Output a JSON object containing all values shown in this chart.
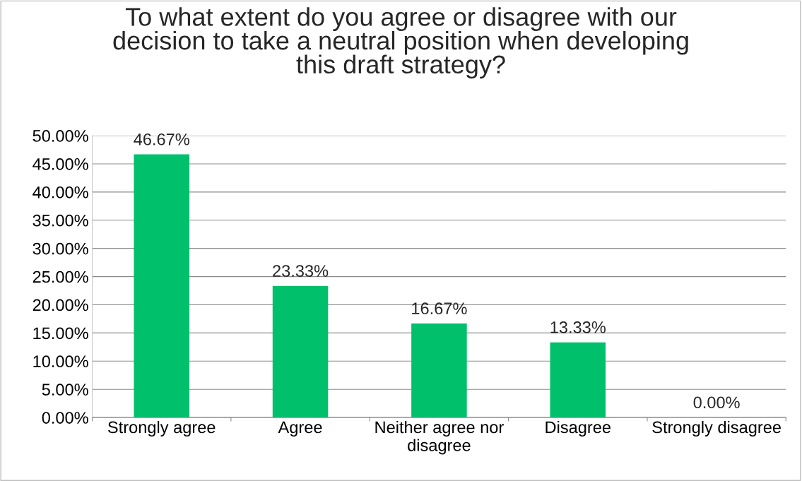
{
  "chart_data": {
    "type": "bar",
    "title": "To what extent do you agree or disagree with our\ndecision to take a neutral position when developing\nthis draft strategy?",
    "categories": [
      "Strongly agree",
      "Agree",
      "Neither agree nor\ndisagree",
      "Disagree",
      "Strongly disagree"
    ],
    "values": [
      46.67,
      23.33,
      16.67,
      13.33,
      0
    ],
    "value_labels": [
      "46.67%",
      "23.33%",
      "16.67%",
      "13.33%",
      "0.00%"
    ],
    "color": "#00c06b",
    "ylim": [
      0,
      50
    ],
    "yticks": [
      {
        "value": 0,
        "label": "0.00%"
      },
      {
        "value": 5,
        "label": "5.00%"
      },
      {
        "value": 10,
        "label": "10.00%"
      },
      {
        "value": 15,
        "label": "15.00%"
      },
      {
        "value": 20,
        "label": "20.00%"
      },
      {
        "value": 25,
        "label": "25.00%"
      },
      {
        "value": 30,
        "label": "30.00%"
      },
      {
        "value": 35,
        "label": "35.00%"
      },
      {
        "value": 40,
        "label": "40.00%"
      },
      {
        "value": 45,
        "label": "45.00%"
      },
      {
        "value": 50,
        "label": "50.00%"
      }
    ],
    "grid": "y",
    "legend": false
  }
}
